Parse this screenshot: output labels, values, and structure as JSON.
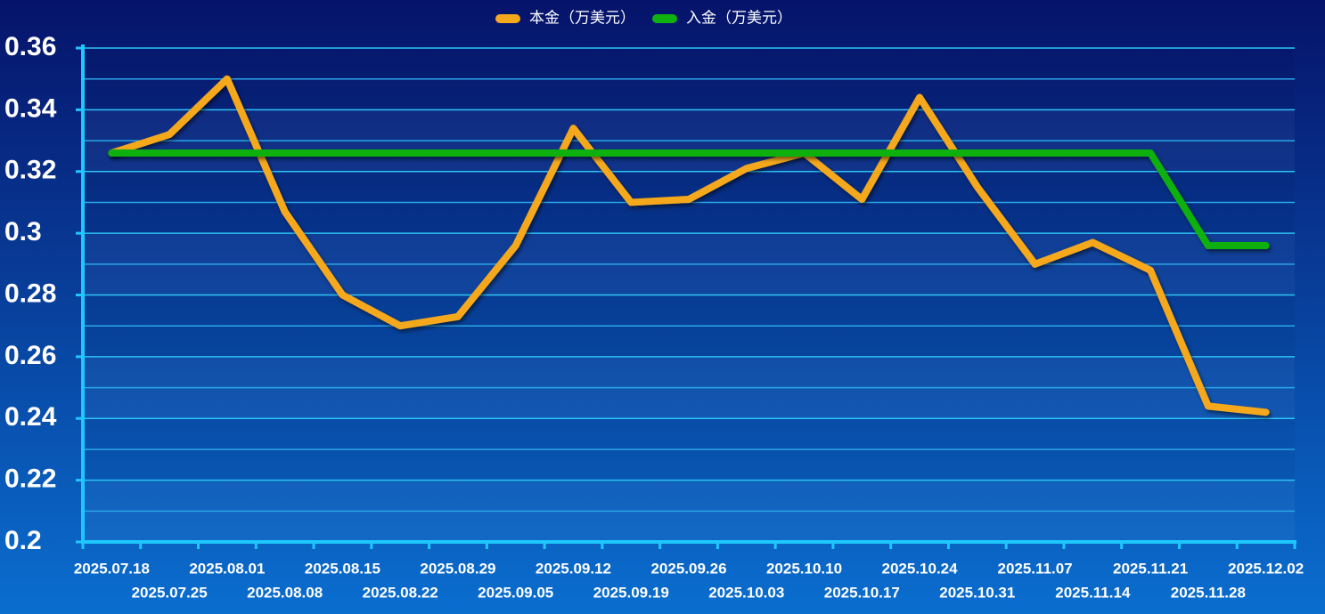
{
  "chart_data": {
    "type": "line",
    "categories": [
      "2025.07.18",
      "2025.07.25",
      "2025.08.01",
      "2025.08.08",
      "2025.08.15",
      "2025.08.22",
      "2025.08.29",
      "2025.09.05",
      "2025.09.12",
      "2025.09.19",
      "2025.09.26",
      "2025.10.03",
      "2025.10.10",
      "2025.10.17",
      "2025.10.24",
      "2025.10.31",
      "2025.11.07",
      "2025.11.14",
      "2025.11.21",
      "2025.11.28",
      "2025.12.02"
    ],
    "series": [
      {
        "name": "本金（万美元）",
        "color": "#f5a81c",
        "values": [
          0.326,
          0.332,
          0.35,
          0.307,
          0.28,
          0.27,
          0.273,
          0.296,
          0.334,
          0.31,
          0.311,
          0.321,
          0.326,
          0.311,
          0.344,
          0.315,
          0.29,
          0.297,
          0.288,
          0.244,
          0.242
        ]
      },
      {
        "name": "入金（万美元）",
        "color": "#10b010",
        "values": [
          0.326,
          0.326,
          0.326,
          0.326,
          0.326,
          0.326,
          0.326,
          0.326,
          0.326,
          0.326,
          0.326,
          0.326,
          0.326,
          0.326,
          0.326,
          0.326,
          0.326,
          0.326,
          0.326,
          0.296,
          0.296
        ]
      }
    ],
    "ylim": [
      0.2,
      0.36
    ],
    "yticks": [
      0.2,
      0.22,
      0.24,
      0.26,
      0.28,
      0.3,
      0.32,
      0.34,
      0.36
    ],
    "minor_yticks": [
      0.21,
      0.23,
      0.25,
      0.27,
      0.29,
      0.31,
      0.33,
      0.35
    ],
    "grid": true,
    "legend": "top"
  }
}
